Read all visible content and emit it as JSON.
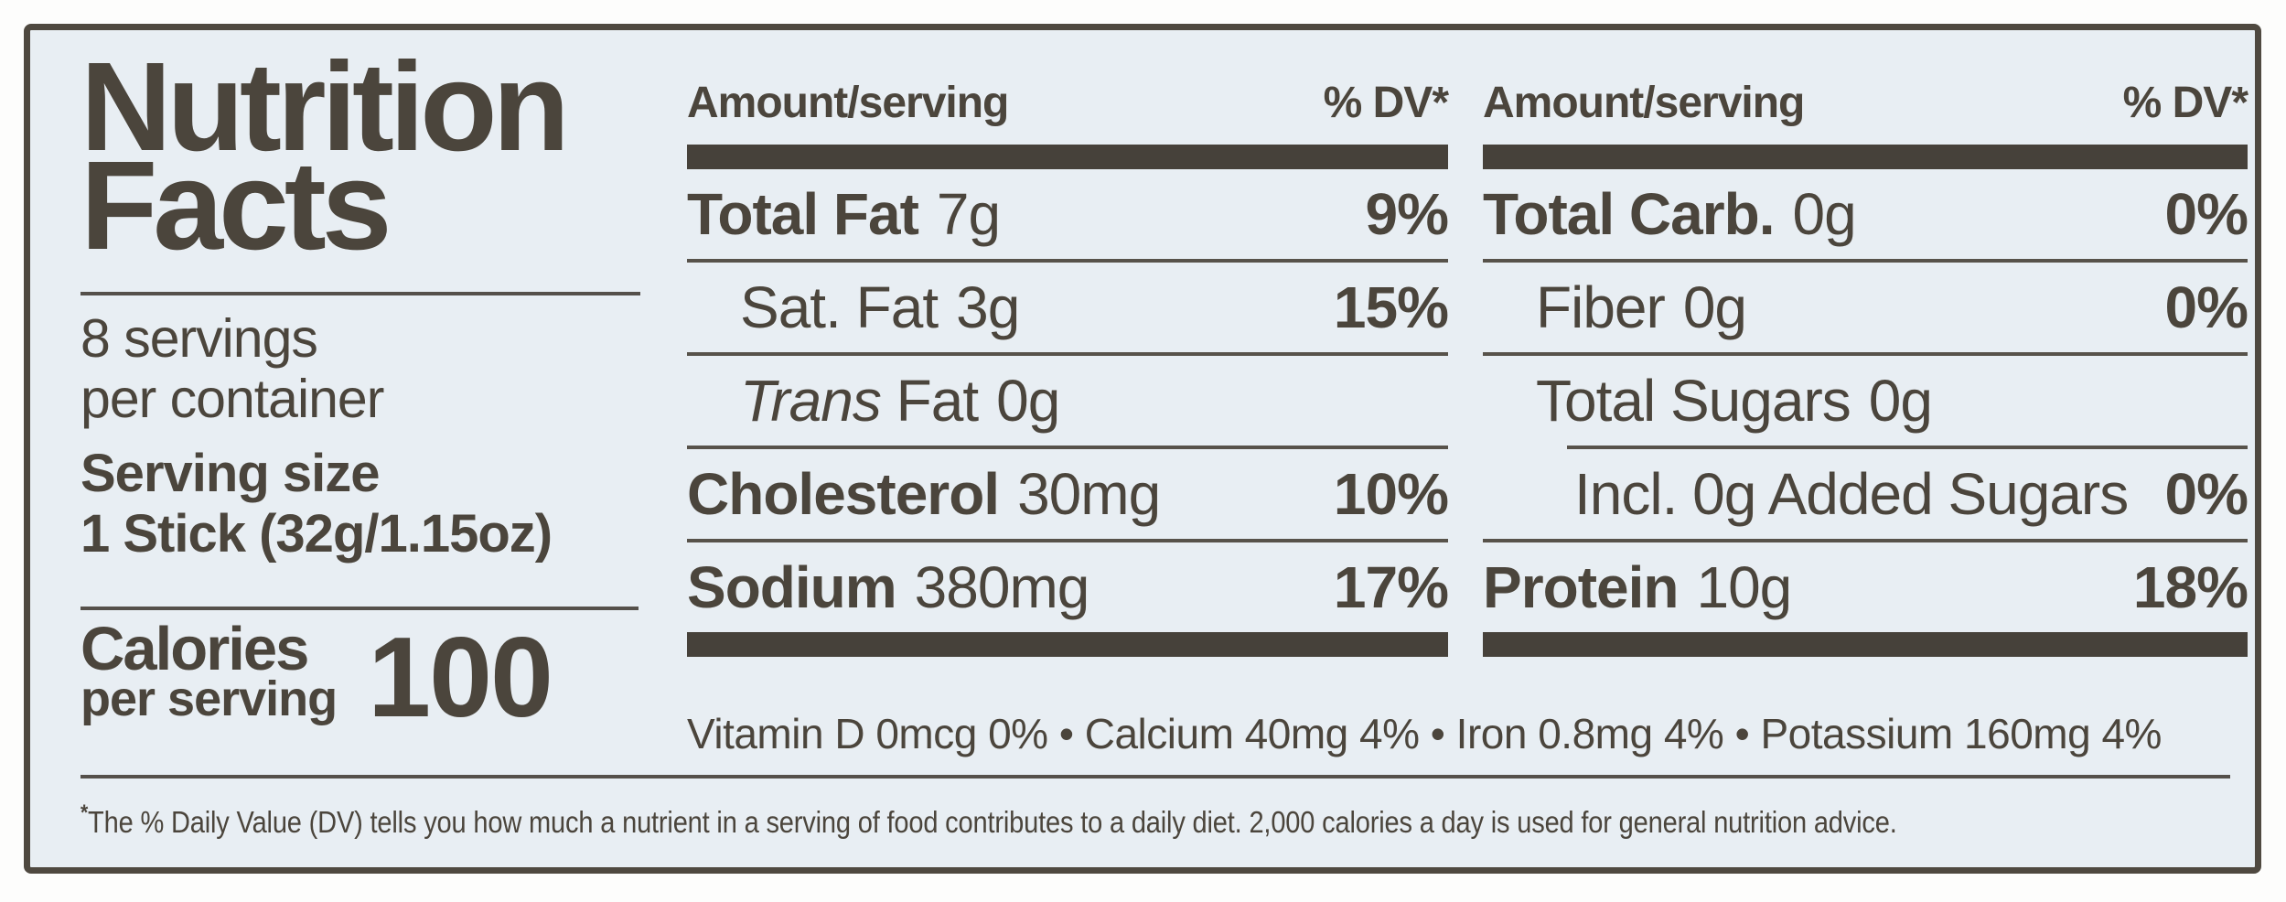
{
  "colors": {
    "ink": "#4b453c",
    "panel_background": "#e8eef3",
    "bar": "#46413a",
    "border": "#4f4940"
  },
  "nutrition_label": {
    "title_line1": "Nutrition",
    "title_line2": "Facts",
    "servings_line1": "8 servings",
    "servings_line2": "per container",
    "serving_size_label": "Serving size",
    "serving_size_value": "1 Stick (32g/1.15oz)",
    "calories_label_line1": "Calories",
    "calories_label_line2": "per serving",
    "calories_value": "100",
    "column_left": {
      "header_amount": "Amount/serving",
      "header_dv": "% DV*",
      "rows": [
        {
          "name": "Total Fat",
          "amount": "7g",
          "dv": "9%"
        },
        {
          "name": "Sat. Fat",
          "amount": "3g",
          "dv": "15%"
        },
        {
          "name_italic": "Trans",
          "name": "Fat",
          "amount": "0g",
          "dv": ""
        },
        {
          "name": "Cholesterol",
          "amount": "30mg",
          "dv": "10%"
        },
        {
          "name": "Sodium",
          "amount": "380mg",
          "dv": "17%"
        }
      ]
    },
    "column_right": {
      "header_amount": "Amount/serving",
      "header_dv": "% DV*",
      "rows": [
        {
          "name": "Total Carb.",
          "amount": "0g",
          "dv": "0%"
        },
        {
          "name": "Fiber",
          "amount": "0g",
          "dv": "0%"
        },
        {
          "name": "Total Sugars",
          "amount": "0g",
          "dv": ""
        },
        {
          "name": "Incl. 0g Added Sugars",
          "amount": "",
          "dv": "0%"
        },
        {
          "name": "Protein",
          "amount": "10g",
          "dv": "18%"
        }
      ]
    },
    "micronutrients_line": "Vitamin D 0mcg 0% • Calcium 40mg 4% • Iron 0.8mg 4% • Potassium 160mg 4%",
    "footnote_marker": "*",
    "footnote_text": "The % Daily Value (DV) tells you how much a nutrient in a serving of food contributes to a daily diet. 2,000 calories a day is used for general nutrition advice."
  }
}
